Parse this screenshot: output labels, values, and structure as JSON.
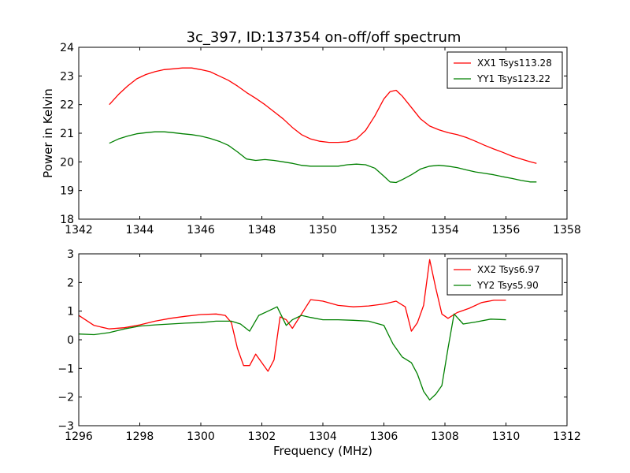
{
  "figure": {
    "title": "3c_397, ID:137354 on-off/off spectrum",
    "shared_xlabel": "Frequency (MHz)"
  },
  "chart_data": [
    {
      "type": "line",
      "title": "3c_397, ID:137354 on-off/off spectrum",
      "xlabel": "",
      "ylabel": "Power in Kelvin",
      "xlim": [
        1342,
        1358
      ],
      "ylim": [
        18,
        24
      ],
      "xticks": [
        1342,
        1344,
        1346,
        1348,
        1350,
        1352,
        1354,
        1356,
        1358
      ],
      "yticks": [
        18,
        19,
        20,
        21,
        22,
        23,
        24
      ],
      "grid": false,
      "legend_position": "top-right",
      "series": [
        {
          "name": "XX1 Tsys113.28",
          "color": "#ff0000",
          "x": [
            1343.0,
            1343.3,
            1343.6,
            1343.9,
            1344.2,
            1344.5,
            1344.8,
            1345.1,
            1345.4,
            1345.7,
            1346.0,
            1346.3,
            1346.6,
            1346.9,
            1347.2,
            1347.5,
            1347.8,
            1348.1,
            1348.4,
            1348.7,
            1349.0,
            1349.3,
            1349.6,
            1349.9,
            1350.2,
            1350.5,
            1350.8,
            1351.1,
            1351.4,
            1351.7,
            1352.0,
            1352.2,
            1352.4,
            1352.6,
            1352.9,
            1353.2,
            1353.5,
            1353.8,
            1354.1,
            1354.4,
            1354.7,
            1355.0,
            1355.3,
            1355.6,
            1355.9,
            1356.2,
            1356.5,
            1356.8,
            1357.0
          ],
          "y": [
            22.0,
            22.35,
            22.65,
            22.9,
            23.05,
            23.15,
            23.22,
            23.25,
            23.28,
            23.28,
            23.22,
            23.15,
            23.0,
            22.85,
            22.65,
            22.42,
            22.22,
            22.0,
            21.75,
            21.5,
            21.2,
            20.95,
            20.8,
            20.72,
            20.68,
            20.68,
            20.7,
            20.8,
            21.1,
            21.6,
            22.2,
            22.45,
            22.5,
            22.3,
            21.9,
            21.5,
            21.25,
            21.12,
            21.02,
            20.95,
            20.85,
            20.72,
            20.58,
            20.45,
            20.33,
            20.2,
            20.1,
            20.0,
            19.95
          ]
        },
        {
          "name": "YY1 Tsys123.22",
          "color": "#008000",
          "x": [
            1343.0,
            1343.3,
            1343.6,
            1343.9,
            1344.2,
            1344.5,
            1344.8,
            1345.1,
            1345.4,
            1345.7,
            1346.0,
            1346.3,
            1346.6,
            1346.9,
            1347.2,
            1347.5,
            1347.8,
            1348.1,
            1348.4,
            1348.7,
            1349.0,
            1349.3,
            1349.6,
            1349.9,
            1350.2,
            1350.5,
            1350.8,
            1351.1,
            1351.4,
            1351.7,
            1352.0,
            1352.2,
            1352.4,
            1352.6,
            1352.9,
            1353.2,
            1353.5,
            1353.8,
            1354.1,
            1354.4,
            1354.7,
            1355.0,
            1355.3,
            1355.6,
            1355.9,
            1356.2,
            1356.5,
            1356.8,
            1357.0
          ],
          "y": [
            20.65,
            20.8,
            20.9,
            20.98,
            21.02,
            21.05,
            21.05,
            21.02,
            20.98,
            20.95,
            20.9,
            20.82,
            20.72,
            20.58,
            20.35,
            20.1,
            20.05,
            20.08,
            20.05,
            20.0,
            19.95,
            19.88,
            19.85,
            19.85,
            19.85,
            19.85,
            19.9,
            19.92,
            19.9,
            19.78,
            19.5,
            19.3,
            19.28,
            19.38,
            19.55,
            19.75,
            19.85,
            19.88,
            19.85,
            19.8,
            19.72,
            19.65,
            19.6,
            19.55,
            19.48,
            19.42,
            19.35,
            19.3,
            19.3
          ]
        }
      ]
    },
    {
      "type": "line",
      "title": "",
      "xlabel": "Frequency (MHz)",
      "ylabel": "",
      "xlim": [
        1296,
        1312
      ],
      "ylim": [
        -3,
        3
      ],
      "xticks": [
        1296,
        1298,
        1300,
        1302,
        1304,
        1306,
        1308,
        1310,
        1312
      ],
      "yticks": [
        -3,
        -2,
        -1,
        0,
        1,
        2,
        3
      ],
      "grid": false,
      "legend_position": "top-right",
      "series": [
        {
          "name": "XX2 Tsys6.97",
          "color": "#ff0000",
          "x": [
            1296.0,
            1296.5,
            1297.0,
            1297.5,
            1298.0,
            1298.5,
            1299.0,
            1299.5,
            1300.0,
            1300.5,
            1300.8,
            1301.0,
            1301.2,
            1301.4,
            1301.6,
            1301.8,
            1302.0,
            1302.2,
            1302.4,
            1302.6,
            1302.8,
            1303.0,
            1303.3,
            1303.6,
            1304.0,
            1304.5,
            1305.0,
            1305.5,
            1306.0,
            1306.4,
            1306.7,
            1306.9,
            1307.1,
            1307.3,
            1307.5,
            1307.7,
            1307.9,
            1308.1,
            1308.4,
            1308.8,
            1309.2,
            1309.6,
            1310.0
          ],
          "y": [
            0.85,
            0.5,
            0.38,
            0.42,
            0.52,
            0.65,
            0.75,
            0.82,
            0.88,
            0.9,
            0.85,
            0.6,
            -0.3,
            -0.9,
            -0.9,
            -0.5,
            -0.8,
            -1.1,
            -0.7,
            0.8,
            0.7,
            0.4,
            0.9,
            1.4,
            1.35,
            1.2,
            1.15,
            1.18,
            1.25,
            1.35,
            1.15,
            0.3,
            0.6,
            1.2,
            2.8,
            1.8,
            0.9,
            0.75,
            0.95,
            1.1,
            1.3,
            1.38,
            1.38
          ]
        },
        {
          "name": "YY2 Tsys5.90",
          "color": "#008000",
          "x": [
            1296.0,
            1296.5,
            1297.0,
            1297.5,
            1298.0,
            1298.5,
            1299.0,
            1299.5,
            1300.0,
            1300.5,
            1301.0,
            1301.3,
            1301.6,
            1301.9,
            1302.2,
            1302.5,
            1302.8,
            1303.0,
            1303.3,
            1303.6,
            1304.0,
            1304.5,
            1305.0,
            1305.5,
            1306.0,
            1306.3,
            1306.6,
            1306.9,
            1307.1,
            1307.3,
            1307.5,
            1307.7,
            1307.9,
            1308.1,
            1308.3,
            1308.6,
            1309.0,
            1309.5,
            1310.0
          ],
          "y": [
            0.2,
            0.18,
            0.25,
            0.38,
            0.48,
            0.52,
            0.55,
            0.58,
            0.6,
            0.65,
            0.65,
            0.55,
            0.3,
            0.85,
            1.0,
            1.15,
            0.5,
            0.7,
            0.85,
            0.78,
            0.7,
            0.7,
            0.68,
            0.65,
            0.5,
            -0.15,
            -0.6,
            -0.8,
            -1.2,
            -1.8,
            -2.1,
            -1.9,
            -1.6,
            -0.3,
            0.9,
            0.55,
            0.62,
            0.72,
            0.7
          ]
        }
      ]
    }
  ]
}
